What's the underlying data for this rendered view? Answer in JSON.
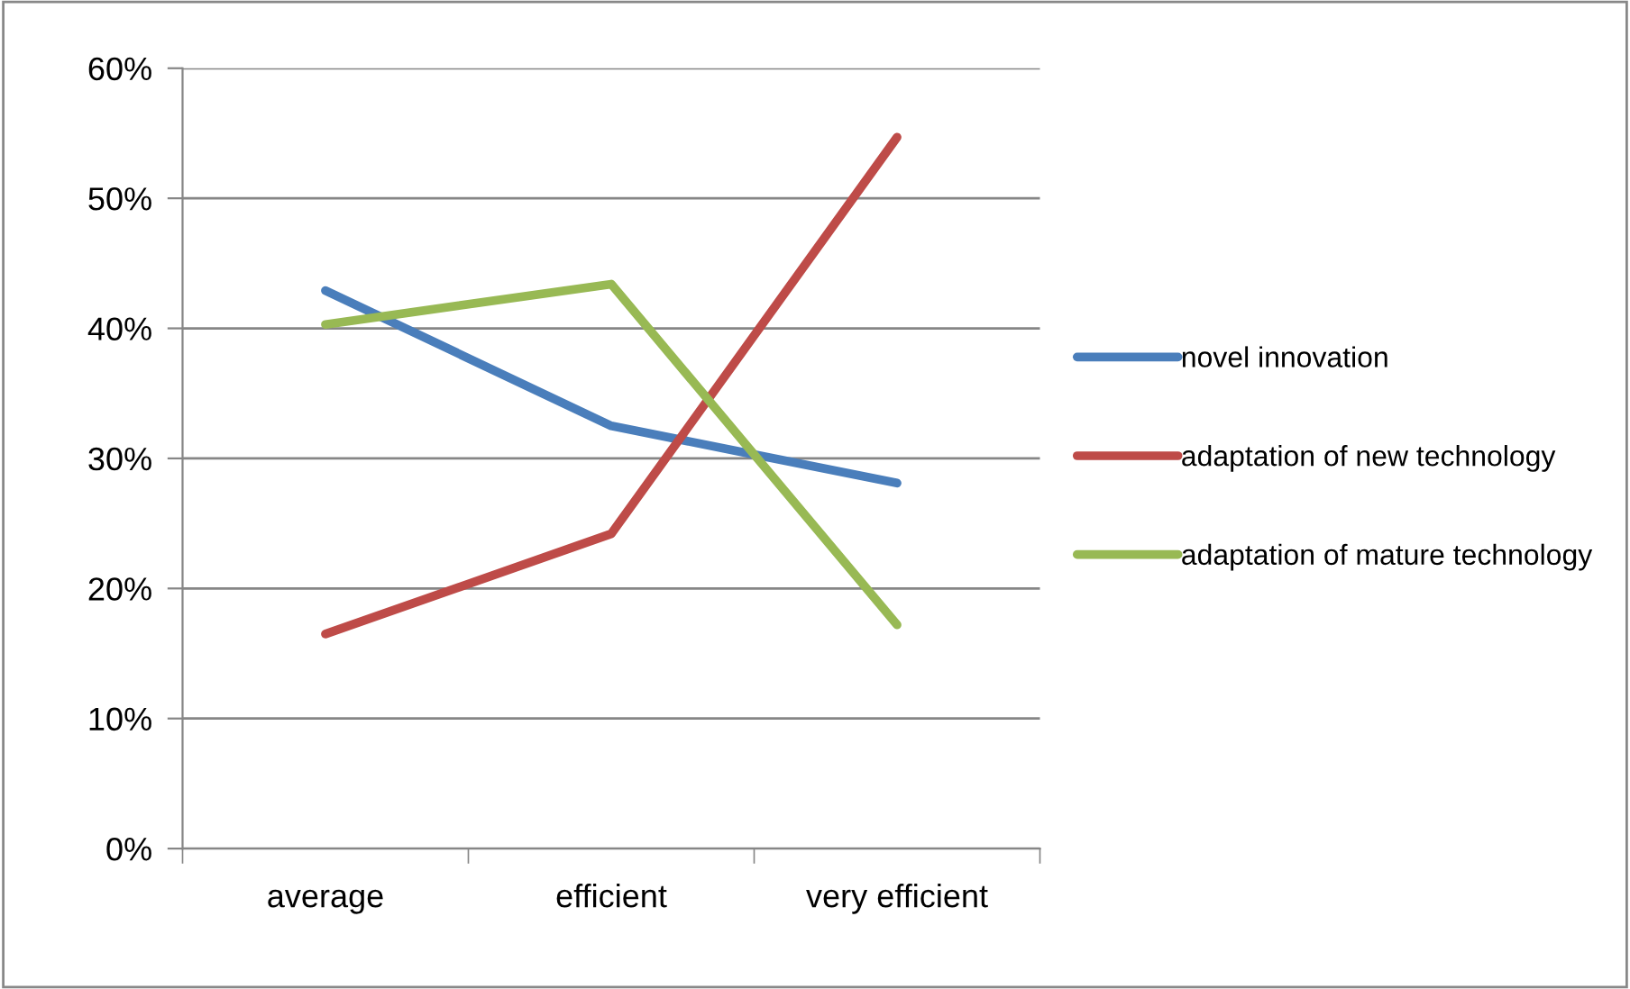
{
  "chart_data": {
    "type": "line",
    "categories": [
      "average",
      "efficient",
      "very efficient"
    ],
    "series": [
      {
        "name": "novel innovation",
        "color": "#4a7ebb",
        "values": [
          42.9,
          32.5,
          28.1
        ]
      },
      {
        "name": "adaptation of new technology",
        "color": "#be4b48",
        "values": [
          16.5,
          24.2,
          54.7
        ]
      },
      {
        "name": "adaptation of mature technology",
        "color": "#98b954",
        "values": [
          40.3,
          43.4,
          17.2
        ]
      }
    ],
    "ylim": [
      0,
      60
    ],
    "yticks": [
      {
        "value": 0,
        "label": "0%"
      },
      {
        "value": 10,
        "label": "10%"
      },
      {
        "value": 20,
        "label": "20%"
      },
      {
        "value": 30,
        "label": "30%"
      },
      {
        "value": 40,
        "label": "40%"
      },
      {
        "value": 50,
        "label": "50%"
      },
      {
        "value": 60,
        "label": "60%"
      }
    ],
    "grid": "y",
    "legend": "right",
    "marker": "none",
    "line_style": "solid"
  }
}
